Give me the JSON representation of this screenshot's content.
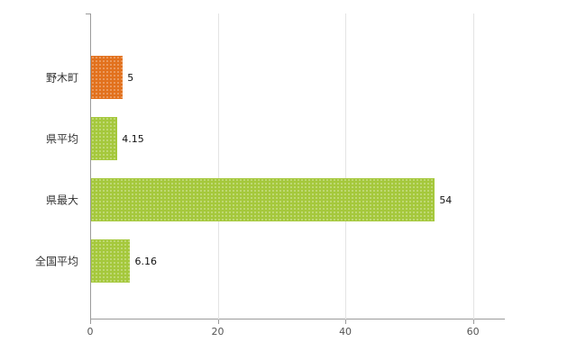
{
  "chart_data": {
    "type": "bar",
    "orientation": "horizontal",
    "title": "",
    "xlabel": "",
    "ylabel": "",
    "categories": [
      "野木町",
      "県平均",
      "県最大",
      "全国平均"
    ],
    "values": [
      5,
      4.15,
      54,
      6.16
    ],
    "value_labels": [
      "5",
      "4.15",
      "54",
      "6.16"
    ],
    "colors": [
      "#e2711d",
      "#a5c83c",
      "#a5c83c",
      "#a5c83c"
    ],
    "xlim": [
      0,
      65
    ],
    "xticks": [
      0,
      20,
      40,
      60
    ],
    "grid": "vertical",
    "legend": "none",
    "background": "#ffffff",
    "axis_color": "#9b9b9b",
    "gridline_color": "#e4e4e4"
  }
}
